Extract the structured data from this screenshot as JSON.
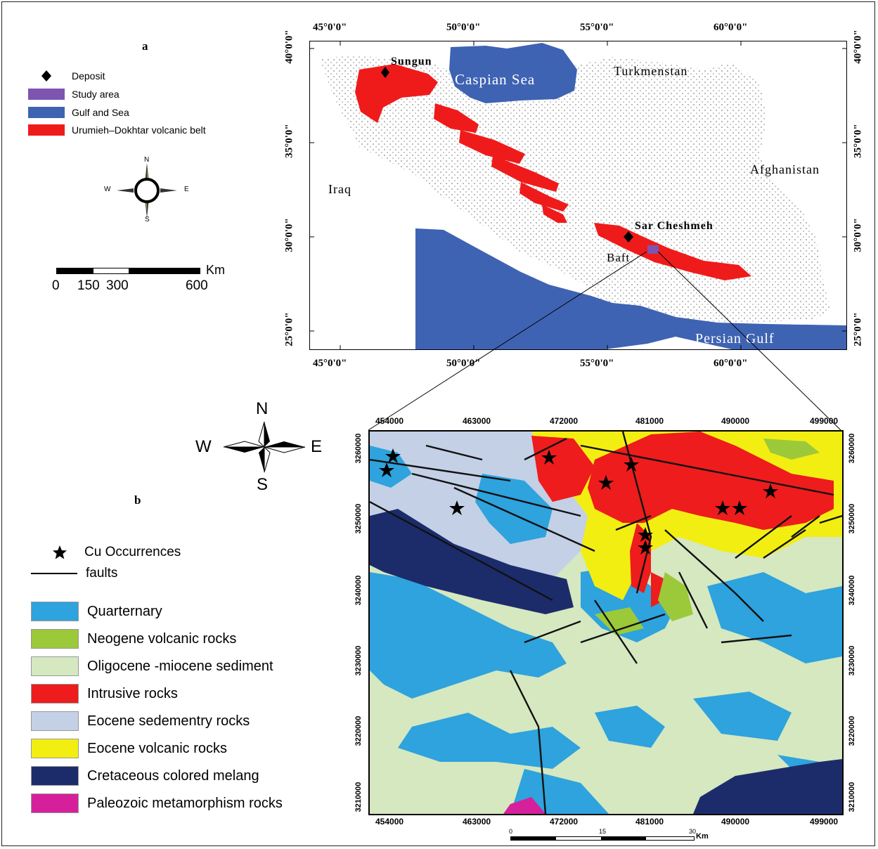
{
  "panel_a": {
    "letter": "a",
    "legend": [
      {
        "label": "Deposit",
        "symbol": "diamond-icon",
        "color": "#000000"
      },
      {
        "label": "Study area",
        "symbol": "swatch",
        "color": "#7d55b0"
      },
      {
        "label": "Gulf and Sea",
        "symbol": "swatch",
        "color": "#3f63b3"
      },
      {
        "label": "Urumieh–Dokhtar volcanic belt",
        "symbol": "swatch",
        "color": "#ef1b1b"
      }
    ],
    "compass": {
      "n": "N",
      "s": "S",
      "e": "E",
      "w": "W"
    },
    "scalebar": {
      "unit": "Km",
      "t0": "0",
      "t1": "150",
      "t2": "300",
      "t3": "600"
    },
    "lon_labels": [
      "45°0'0\"",
      "50°0'0\"",
      "55°0'0\"",
      "60°0'0\""
    ],
    "lat_labels": [
      "40°0'0\"",
      "35°0'0\"",
      "30°0'0\"",
      "25°0'0\""
    ],
    "places": {
      "sungun": "Sungun",
      "caspian": "Caspian Sea",
      "turkmenstan": "Turkmenstan",
      "afghanistan": "Afghanistan",
      "iraq": "Iraq",
      "sarcheshmeh": "Sar Cheshmeh",
      "baft": "Baft",
      "gulf": "Persian Gulf"
    }
  },
  "panel_b": {
    "letter": "b",
    "compass": {
      "n": "N",
      "s": "S",
      "e": "E",
      "w": "W"
    },
    "legend_symbols": [
      {
        "label": "Cu Occurrences",
        "symbol": "star-icon"
      },
      {
        "label": "faults",
        "symbol": "line"
      }
    ],
    "legend_units": [
      {
        "label": "Quarternary",
        "color": "#2ea3dd"
      },
      {
        "label": "Neogene volcanic rocks",
        "color": "#9cc93a"
      },
      {
        "label": "Oligocene -miocene sediment",
        "color": "#d5e8c0"
      },
      {
        "label": "Intrusive rocks",
        "color": "#ee1c1c"
      },
      {
        "label": "Eocene sedementry rocks",
        "color": "#c3d0e6"
      },
      {
        "label": "Eocene  volcanic rocks",
        "color": "#f3ee12"
      },
      {
        "label": "Cretaceous colored melang",
        "color": "#1c2c6b"
      },
      {
        "label": "Paleozoic metamorphism rocks",
        "color": "#d6209b"
      }
    ],
    "easting_labels": [
      "454000",
      "463000",
      "472000",
      "481000",
      "490000",
      "499000"
    ],
    "northing_labels": [
      "3260000",
      "3250000",
      "3240000",
      "3230000",
      "3220000",
      "3210000"
    ],
    "scalebar": {
      "unit": "Km",
      "t0": "0",
      "t1": "15",
      "t2": "30"
    }
  },
  "colors": {
    "sea": "#3f63b3",
    "belt": "#ef1b1b",
    "study": "#7d55b0",
    "stipple": "#777777"
  }
}
